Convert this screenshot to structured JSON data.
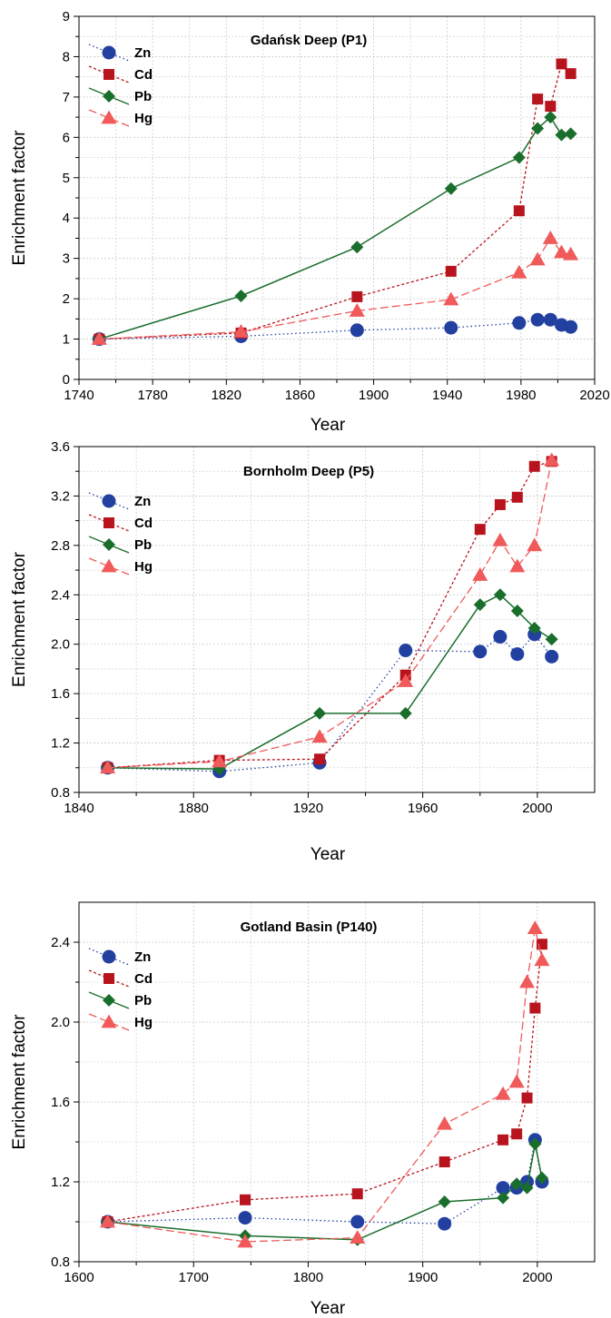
{
  "figure": {
    "colors": {
      "Zn": "#2240a0",
      "Cd": "#b8141e",
      "Pb": "#1a6e2c",
      "Hg": "#f05a5a",
      "grid": "#c8c8c8"
    }
  },
  "chart_data": [
    {
      "type": "line",
      "title": "Gdańsk Deep (P1)",
      "xlabel": "Year",
      "ylabel": "Enrichment factor",
      "xlim": [
        1740,
        2020
      ],
      "ylim": [
        0,
        9
      ],
      "xticks": [
        1740,
        1780,
        1820,
        1860,
        1900,
        1940,
        1980,
        2020
      ],
      "yticks": [
        0,
        1,
        2,
        3,
        4,
        5,
        6,
        7,
        8,
        9
      ],
      "grid": true,
      "legend": "top-left",
      "series": [
        {
          "name": "Zn",
          "marker": "circle",
          "x": [
            1751,
            1828,
            1891,
            1942,
            1979,
            1989,
            1996,
            2002,
            2007
          ],
          "y": [
            1.0,
            1.07,
            1.22,
            1.28,
            1.4,
            1.48,
            1.48,
            1.35,
            1.3
          ]
        },
        {
          "name": "Cd",
          "marker": "square",
          "x": [
            1751,
            1828,
            1891,
            1942,
            1979,
            1989,
            1996,
            2002,
            2007
          ],
          "y": [
            1.0,
            1.15,
            2.05,
            2.68,
            4.18,
            6.95,
            6.77,
            7.82,
            7.58
          ]
        },
        {
          "name": "Pb",
          "marker": "diamond",
          "x": [
            1751,
            1828,
            1891,
            1942,
            1979,
            1989,
            1996,
            2002,
            2007
          ],
          "y": [
            1.0,
            2.07,
            3.28,
            4.73,
            5.5,
            6.22,
            6.5,
            6.06,
            6.09
          ]
        },
        {
          "name": "Hg",
          "marker": "triangle",
          "x": [
            1751,
            1828,
            1891,
            1942,
            1979,
            1989,
            1996,
            2002,
            2007
          ],
          "y": [
            1.0,
            1.18,
            1.7,
            1.98,
            2.65,
            2.97,
            3.5,
            3.15,
            3.1
          ]
        }
      ]
    },
    {
      "type": "line",
      "title": "Bornholm Deep (P5)",
      "xlabel": "Year",
      "ylabel": "Enrichment factor",
      "xlim": [
        1840,
        2020
      ],
      "ylim": [
        0.8,
        3.6
      ],
      "xticks": [
        1840,
        1880,
        1920,
        1960,
        2000
      ],
      "yticks": [
        0.8,
        1.2,
        1.6,
        2.0,
        2.4,
        2.8,
        3.2,
        3.6
      ],
      "grid": true,
      "legend": "top-left",
      "series": [
        {
          "name": "Zn",
          "marker": "circle",
          "x": [
            1850,
            1889,
            1924,
            1954,
            1980,
            1987,
            1993,
            1999,
            2005
          ],
          "y": [
            1.0,
            0.97,
            1.04,
            1.95,
            1.94,
            2.06,
            1.92,
            2.08,
            1.9
          ]
        },
        {
          "name": "Cd",
          "marker": "square",
          "x": [
            1850,
            1889,
            1924,
            1954,
            1980,
            1987,
            1993,
            1999,
            2005
          ],
          "y": [
            1.0,
            1.06,
            1.07,
            1.75,
            2.93,
            3.13,
            3.19,
            3.44,
            3.48
          ]
        },
        {
          "name": "Pb",
          "marker": "diamond",
          "x": [
            1850,
            1889,
            1924,
            1954,
            1980,
            1987,
            1993,
            1999,
            2005
          ],
          "y": [
            1.0,
            0.99,
            1.44,
            1.44,
            2.32,
            2.4,
            2.27,
            2.13,
            2.04
          ]
        },
        {
          "name": "Hg",
          "marker": "triangle",
          "x": [
            1850,
            1889,
            1924,
            1954,
            1980,
            1987,
            1993,
            1999,
            2005
          ],
          "y": [
            1.0,
            1.05,
            1.25,
            1.7,
            2.56,
            2.84,
            2.63,
            2.8,
            3.49
          ]
        }
      ]
    },
    {
      "type": "line",
      "title": "Gotland Basin (P140)",
      "xlabel": "Year",
      "ylabel": "Enrichment factor",
      "xlim": [
        1600,
        2050
      ],
      "ylim": [
        0.8,
        2.6
      ],
      "xticks": [
        1600,
        1700,
        1800,
        1900,
        2000
      ],
      "yticks": [
        0.8,
        1.2,
        1.6,
        2.0,
        2.4
      ],
      "grid": true,
      "legend": "top-left",
      "series": [
        {
          "name": "Zn",
          "marker": "circle",
          "x": [
            1625,
            1745,
            1843,
            1919,
            1970,
            1982,
            1991,
            1998,
            2004
          ],
          "y": [
            1.0,
            1.02,
            1.0,
            0.99,
            1.17,
            1.17,
            1.2,
            1.41,
            1.2
          ]
        },
        {
          "name": "Cd",
          "marker": "square",
          "x": [
            1625,
            1745,
            1843,
            1919,
            1970,
            1982,
            1991,
            1998,
            2004
          ],
          "y": [
            1.0,
            1.11,
            1.14,
            1.3,
            1.41,
            1.44,
            1.62,
            2.07,
            2.39
          ]
        },
        {
          "name": "Pb",
          "marker": "diamond",
          "x": [
            1625,
            1745,
            1843,
            1919,
            1970,
            1982,
            1991,
            1998,
            2004
          ],
          "y": [
            1.0,
            0.93,
            0.91,
            1.1,
            1.12,
            1.19,
            1.17,
            1.39,
            1.22
          ]
        },
        {
          "name": "Hg",
          "marker": "triangle",
          "x": [
            1625,
            1745,
            1843,
            1919,
            1970,
            1982,
            1991,
            1998,
            2004
          ],
          "y": [
            1.0,
            0.9,
            0.92,
            1.49,
            1.64,
            1.7,
            2.2,
            2.47,
            2.31
          ]
        }
      ]
    }
  ]
}
